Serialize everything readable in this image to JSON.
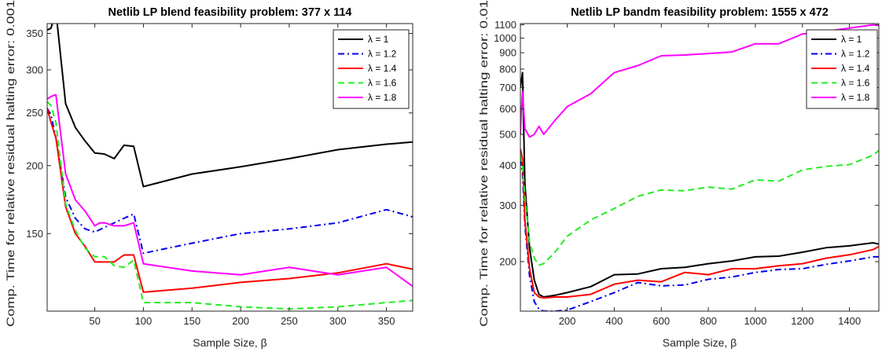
{
  "chart_data": [
    {
      "type": "line",
      "title": "Netlib LP blend feasibility problem: 377 x 114",
      "xlabel": "Sample Size, β",
      "ylabel": "Comp. Time for relative residual halting error: 0.001",
      "yscale": "log",
      "xlim": [
        1,
        377
      ],
      "ylim": [
        108,
        365
      ],
      "xticks": [
        50,
        100,
        150,
        200,
        250,
        300,
        350
      ],
      "xtick_labels": [
        "50",
        "100",
        "150",
        "200",
        "250",
        "300",
        "350"
      ],
      "yticks": [
        150,
        200,
        250,
        300,
        350
      ],
      "ytick_labels": [
        "150",
        "200",
        "250",
        "300",
        "350"
      ],
      "legend_loc": "top-right",
      "grid": false,
      "series": [
        {
          "name": "λ = 1",
          "color": "#000000",
          "dash": "solid",
          "x": [
            1,
            5,
            10,
            20,
            30,
            40,
            50,
            60,
            70,
            80,
            90,
            100,
            150,
            200,
            250,
            300,
            350,
            377
          ],
          "y": [
            355,
            358,
            385,
            260,
            235,
            222,
            211,
            210,
            206,
            218,
            217,
            183,
            193,
            199,
            206,
            214,
            219,
            221
          ]
        },
        {
          "name": "λ = 1.2",
          "color": "#0000ee",
          "dash": "dashdot",
          "x": [
            1,
            5,
            10,
            20,
            30,
            40,
            50,
            60,
            70,
            80,
            90,
            100,
            150,
            200,
            250,
            300,
            350,
            377
          ],
          "y": [
            255,
            248,
            225,
            175,
            160,
            153,
            151,
            154,
            157,
            160,
            163,
            138,
            144,
            150,
            153,
            157,
            166,
            161
          ]
        },
        {
          "name": "λ = 1.4",
          "color": "#ff0000",
          "dash": "solid",
          "x": [
            1,
            5,
            10,
            20,
            30,
            40,
            50,
            60,
            70,
            80,
            90,
            100,
            150,
            200,
            250,
            300,
            350,
            377
          ],
          "y": [
            255,
            240,
            225,
            168,
            150,
            142,
            133,
            133,
            133,
            137,
            137,
            117,
            119,
            122,
            124,
            127,
            132,
            129
          ]
        },
        {
          "name": "λ = 1.6",
          "color": "#22ee22",
          "dash": "dashed",
          "x": [
            1,
            5,
            10,
            20,
            30,
            40,
            50,
            60,
            70,
            80,
            90,
            100,
            150,
            200,
            250,
            300,
            350,
            377
          ],
          "y": [
            262,
            258,
            240,
            170,
            152,
            141,
            136,
            136,
            131,
            130,
            134,
            112,
            112,
            110,
            109,
            110,
            112,
            113
          ]
        },
        {
          "name": "λ = 1.8",
          "color": "#ff00ff",
          "dash": "solid",
          "x": [
            1,
            5,
            10,
            20,
            30,
            40,
            50,
            55,
            60,
            70,
            80,
            90,
            100,
            150,
            200,
            250,
            300,
            350,
            377
          ],
          "y": [
            265,
            268,
            270,
            193,
            173,
            165,
            155,
            157,
            157,
            155,
            155,
            157,
            132,
            128,
            126,
            130,
            126,
            130,
            120
          ]
        }
      ]
    },
    {
      "type": "line",
      "title": "Netlib LP bandm feasibility problem: 1555 x 472",
      "xlabel": "Sample Size, β",
      "ylabel": "Comp. Time for relative residual halting error: 0.01",
      "yscale": "log",
      "xlim": [
        1,
        1525
      ],
      "ylim": [
        140,
        1110
      ],
      "xticks": [
        200,
        400,
        600,
        800,
        1000,
        1200,
        1400
      ],
      "xtick_labels": [
        "200",
        "400",
        "600",
        "800",
        "1000",
        "1200",
        "1400"
      ],
      "yticks": [
        200,
        300,
        400,
        500,
        600,
        700,
        800,
        900,
        1000,
        1100
      ],
      "ytick_labels": [
        "200",
        "300",
        "400",
        "500",
        "600",
        "700",
        "800",
        "900",
        "1000",
        "1100"
      ],
      "legend_loc": "top-right",
      "grid": false,
      "series": [
        {
          "name": "λ = 1",
          "color": "#000000",
          "dash": "solid",
          "x": [
            1,
            10,
            20,
            40,
            60,
            80,
            100,
            150,
            200,
            300,
            400,
            500,
            600,
            700,
            800,
            900,
            1000,
            1100,
            1200,
            1300,
            1400,
            1500,
            1525
          ],
          "y": [
            700,
            780,
            350,
            220,
            175,
            158,
            155,
            157,
            160,
            167,
            182,
            183,
            190,
            192,
            197,
            201,
            207,
            208,
            214,
            221,
            224,
            229,
            227
          ]
        },
        {
          "name": "λ = 1.2",
          "color": "#0000ee",
          "dash": "dashdot",
          "x": [
            1,
            10,
            20,
            40,
            60,
            80,
            100,
            150,
            200,
            300,
            400,
            500,
            600,
            700,
            800,
            900,
            1000,
            1100,
            1200,
            1300,
            1400,
            1500,
            1525
          ],
          "y": [
            420,
            380,
            260,
            180,
            150,
            142,
            140,
            140,
            141,
            150,
            160,
            172,
            168,
            169,
            176,
            179,
            185,
            189,
            190,
            196,
            201,
            207,
            207
          ]
        },
        {
          "name": "λ = 1.4",
          "color": "#ff0000",
          "dash": "solid",
          "x": [
            1,
            10,
            20,
            40,
            60,
            80,
            100,
            150,
            200,
            300,
            400,
            500,
            600,
            700,
            800,
            900,
            1000,
            1100,
            1200,
            1300,
            1400,
            1500,
            1525
          ],
          "y": [
            450,
            420,
            270,
            190,
            160,
            155,
            154,
            155,
            155,
            158,
            170,
            175,
            173,
            185,
            182,
            190,
            190,
            194,
            197,
            205,
            210,
            218,
            223
          ]
        },
        {
          "name": "λ = 1.6",
          "color": "#22ee22",
          "dash": "dashed",
          "x": [
            1,
            10,
            20,
            40,
            60,
            80,
            100,
            150,
            200,
            300,
            400,
            500,
            600,
            700,
            800,
            900,
            1000,
            1100,
            1200,
            1300,
            1400,
            1500,
            1525
          ],
          "y": [
            430,
            400,
            320,
            230,
            205,
            195,
            197,
            215,
            240,
            270,
            293,
            320,
            335,
            333,
            342,
            337,
            360,
            357,
            387,
            397,
            402,
            430,
            445
          ]
        },
        {
          "name": "λ = 1.8",
          "color": "#ff00ff",
          "dash": "solid",
          "x": [
            1,
            5,
            10,
            20,
            40,
            60,
            80,
            100,
            150,
            200,
            300,
            400,
            500,
            600,
            700,
            800,
            900,
            1000,
            1100,
            1200,
            1300,
            1400,
            1500,
            1525
          ],
          "y": [
            500,
            590,
            680,
            520,
            490,
            500,
            530,
            500,
            555,
            610,
            670,
            780,
            820,
            880,
            885,
            895,
            905,
            960,
            960,
            1030,
            1050,
            1075,
            1100,
            1095
          ]
        }
      ]
    }
  ]
}
